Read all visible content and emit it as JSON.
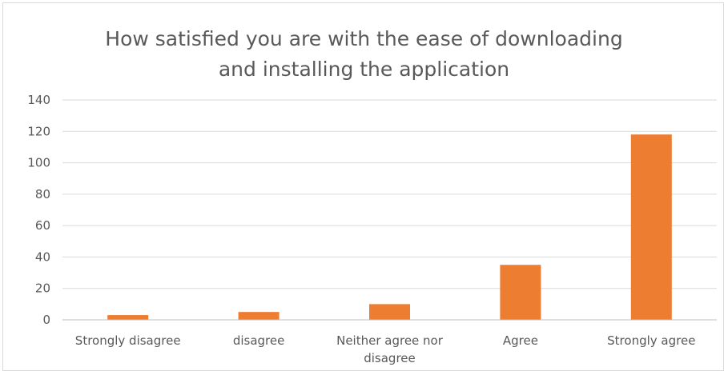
{
  "chart_data": {
    "type": "bar",
    "title": "How satisfied you are with the ease of downloading\nand installing the application",
    "categories": [
      "Strongly disagree",
      "disagree",
      "Neither agree nor disagree",
      "Agree",
      "Strongly agree"
    ],
    "category_lines": [
      [
        "Strongly disagree"
      ],
      [
        "disagree"
      ],
      [
        "Neither agree nor",
        "disagree"
      ],
      [
        "Agree"
      ],
      [
        "Strongly agree"
      ]
    ],
    "values": [
      3,
      5,
      10,
      35,
      118
    ],
    "ylim": [
      0,
      140
    ],
    "yticks": [
      0,
      20,
      40,
      60,
      80,
      100,
      120,
      140
    ],
    "grid": true,
    "legend": "none",
    "bar_color": "#ED7D31"
  }
}
